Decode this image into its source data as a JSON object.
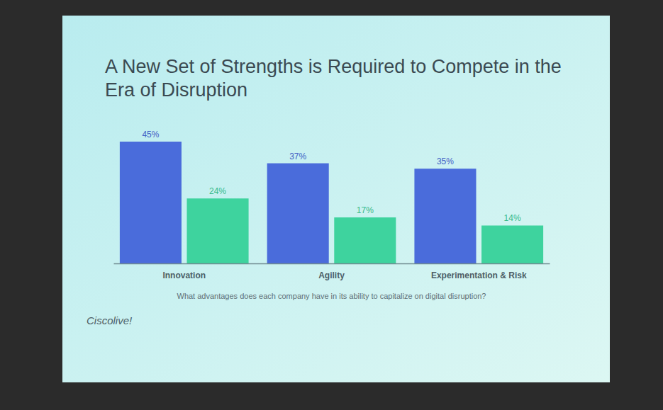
{
  "chart_data": {
    "type": "bar",
    "title": "A New Set of Strengths is Required to Compete in the Era of Disruption",
    "x_label": "What advantages does each company have in its ability to capitalize on digital disruption?",
    "annotations": [
      "Ciscolive!"
    ],
    "categories": [
      "Innovation",
      "Agility",
      "Experimentation & Risk"
    ],
    "series": [
      {
        "color": "#4a6cdb",
        "values": [
          45,
          37,
          35
        ],
        "value_labels": [
          "45%",
          "37%",
          "35%"
        ]
      },
      {
        "color": "#3ed39e",
        "values": [
          24,
          17,
          14
        ],
        "value_labels": [
          "24%",
          "17%",
          "14%"
        ]
      }
    ],
    "ylim": [
      0,
      45
    ],
    "grid": false,
    "data_labels": true,
    "tick_labels": "x"
  }
}
